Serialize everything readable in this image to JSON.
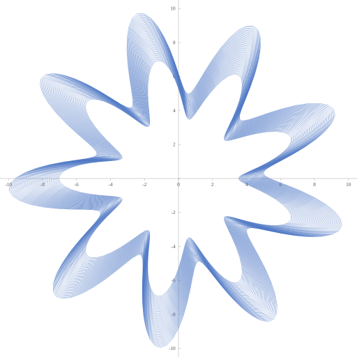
{
  "plot": {
    "type": "line",
    "axis": {
      "xlim": [
        -10.5,
        10.5
      ],
      "ylim": [
        -10.5,
        10.5
      ],
      "ticks": [
        -10,
        -8,
        -6,
        -4,
        -2,
        0,
        2,
        4,
        6,
        8,
        10
      ],
      "tick_length": 0.12,
      "label_fontsize_px": 0.3,
      "axis_color": "#888888",
      "label_color": "#555555"
    },
    "background_color": "#ffffff",
    "curve": {
      "stroke_color": "#4a75c4",
      "stroke_width": 0.015,
      "n_curves": 45,
      "theta_start_deg": 0,
      "theta_end_deg": 360,
      "theta_step_deg": 2,
      "petals": 9,
      "r_base": 6.0,
      "r_amp": 2.0,
      "phase_total_deg": 40,
      "rotate_total_deg": 8,
      "scale_min": 0.88,
      "scale_max": 1.25,
      "opacity": 0.9
    }
  }
}
